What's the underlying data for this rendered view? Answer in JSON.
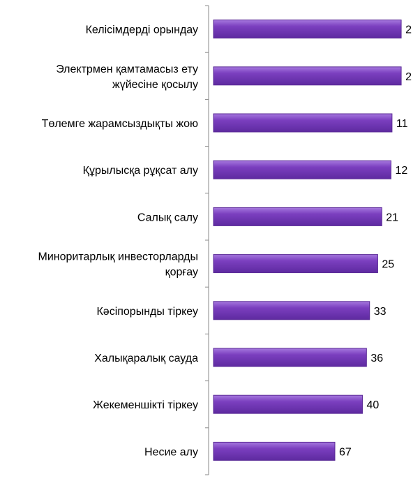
{
  "chart_data": {
    "type": "bar",
    "orientation": "horizontal",
    "categories": [
      [
        "Келісімдерді орындау"
      ],
      [
        "Электрмен қамтамасыз ету",
        "жүйесіне қосылу"
      ],
      [
        "Төлемге жарамсыздықты жою"
      ],
      [
        "Құрылысқа рұқсат алу"
      ],
      [
        "Салық салу"
      ],
      [
        "Миноритарлық инвесторларды",
        "қорғау"
      ],
      [
        "Кәсіпорынды тіркеу"
      ],
      [
        "Халықаралық сауда"
      ],
      [
        "Жекеменшікті тіркеу"
      ],
      [
        "Несие алу"
      ]
    ],
    "values": [
      2,
      2,
      11,
      12,
      21,
      25,
      33,
      36,
      40,
      67
    ],
    "value_labels": [
      "2",
      "2",
      "11",
      "12",
      "21",
      "25",
      "33",
      "36",
      "40",
      "67"
    ],
    "bar_color": "#7b3fbf",
    "bar_border_color": "#5a2a96",
    "axis_color": "#888888",
    "grid": false,
    "axis_reversed": true,
    "xlim": [
      0,
      190
    ]
  }
}
